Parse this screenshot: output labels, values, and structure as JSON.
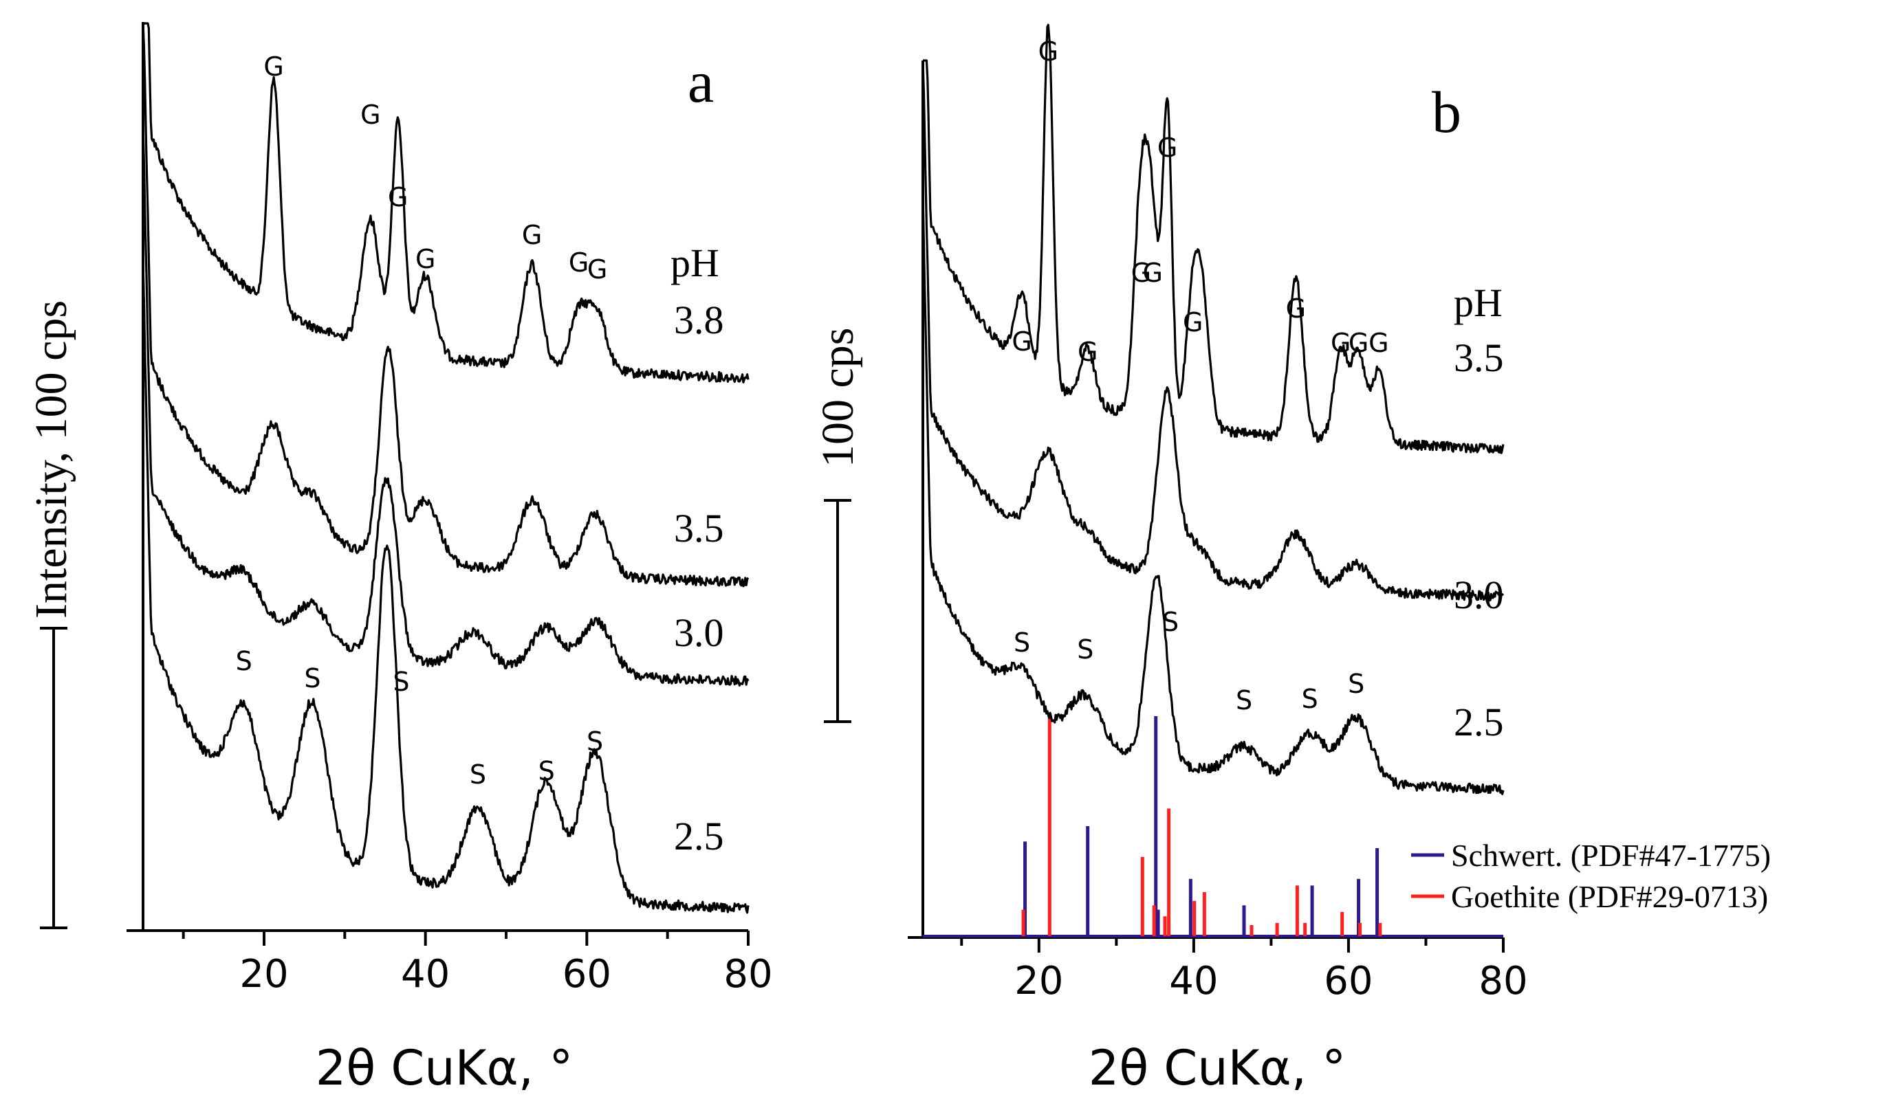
{
  "chart_data": [
    {
      "panel": "a",
      "type": "line",
      "xlabel": "2θ CuKα, °",
      "ylabel": "Intensity, 100 cps",
      "xlim": [
        5,
        80
      ],
      "xticks": [
        20,
        40,
        60,
        80
      ],
      "legend_title": "pH",
      "series": [
        {
          "name": "3.8",
          "peaks": [
            [
              21.2,
              1.0
            ],
            [
              33.2,
              0.55
            ],
            [
              36.6,
              1.0
            ],
            [
              40.0,
              0.35
            ],
            [
              53.2,
              0.45
            ],
            [
              59.0,
              0.25
            ],
            [
              61.3,
              0.25
            ]
          ]
        },
        {
          "name": "3.5",
          "peaks": [
            [
              21.2,
              0.45
            ],
            [
              26.0,
              0.2
            ],
            [
              35.4,
              1.0
            ],
            [
              40.0,
              0.3
            ],
            [
              53.3,
              0.35
            ],
            [
              61.0,
              0.3
            ]
          ]
        },
        {
          "name": "3.0",
          "peaks": [
            [
              17.5,
              0.2
            ],
            [
              26.0,
              0.2
            ],
            [
              35.2,
              1.0
            ],
            [
              46.0,
              0.2
            ],
            [
              55.0,
              0.25
            ],
            [
              61.2,
              0.3
            ]
          ]
        },
        {
          "name": "2.5",
          "peaks": [
            [
              17.5,
              0.3
            ],
            [
              26.0,
              0.45
            ],
            [
              35.2,
              1.0
            ],
            [
              46.5,
              0.25
            ],
            [
              55.0,
              0.35
            ],
            [
              61.0,
              0.45
            ]
          ]
        }
      ],
      "annotations": {
        "G": [
          21.2,
          33.2,
          36.6,
          40.0,
          53.2,
          59.0,
          61.3
        ],
        "S": [
          17.5,
          26.0,
          37.0,
          46.5,
          55.0,
          61.0
        ]
      }
    },
    {
      "panel": "b",
      "type": "line",
      "xlabel": "2θ CuKα, °",
      "ylabel": "100 cps",
      "xlim": [
        5,
        80
      ],
      "xticks": [
        20,
        40,
        60,
        80
      ],
      "legend_title": "pH",
      "series": [
        {
          "name": "3.5",
          "peaks": [
            [
              17.8,
              0.2
            ],
            [
              21.2,
              1.0
            ],
            [
              26.3,
              0.15
            ],
            [
              33.2,
              0.6
            ],
            [
              34.7,
              0.5
            ],
            [
              36.6,
              0.85
            ],
            [
              39.9,
              0.35
            ],
            [
              41.2,
              0.3
            ],
            [
              53.2,
              0.45
            ],
            [
              59.0,
              0.25
            ],
            [
              61.3,
              0.25
            ],
            [
              63.9,
              0.2
            ]
          ]
        },
        {
          "name": "3.0",
          "peaks": [
            [
              21.2,
              0.5
            ],
            [
              26.0,
              0.15
            ],
            [
              36.5,
              1.0
            ],
            [
              40.0,
              0.2
            ],
            [
              53.2,
              0.3
            ],
            [
              61.0,
              0.15
            ]
          ]
        },
        {
          "name": "2.5",
          "peaks": [
            [
              17.8,
              0.2
            ],
            [
              26.0,
              0.25
            ],
            [
              35.2,
              1.0
            ],
            [
              46.5,
              0.15
            ],
            [
              55.0,
              0.25
            ],
            [
              61.0,
              0.35
            ]
          ]
        }
      ],
      "annotations": {
        "G": [
          17.8,
          21.2,
          26.3,
          33.2,
          34.7,
          36.6,
          39.9,
          53.2,
          59.0,
          61.3,
          63.9
        ],
        "S": [
          17.8,
          26.0,
          37.0,
          46.5,
          55.0,
          61.0
        ]
      },
      "reference_patterns": [
        {
          "name": "Schwert. (PDF#47-1775)",
          "color": "#2f1a8c",
          "lines": [
            [
              18.2,
              0.43
            ],
            [
              26.3,
              0.5
            ],
            [
              35.1,
              1.0
            ],
            [
              35.4,
              0.12
            ],
            [
              39.6,
              0.26
            ],
            [
              46.5,
              0.14
            ],
            [
              55.3,
              0.23
            ],
            [
              61.3,
              0.26
            ],
            [
              63.7,
              0.4
            ]
          ]
        },
        {
          "name": "Goethite (PDF#29-0713)",
          "color": "#ff2020",
          "lines": [
            [
              17.8,
              0.12
            ],
            [
              21.2,
              1.0
            ],
            [
              33.2,
              0.36
            ],
            [
              34.7,
              0.14
            ],
            [
              36.1,
              0.09
            ],
            [
              36.6,
              0.58
            ],
            [
              39.9,
              0.16
            ],
            [
              41.2,
              0.2
            ],
            [
              47.3,
              0.05
            ],
            [
              50.6,
              0.06
            ],
            [
              53.2,
              0.23
            ],
            [
              54.2,
              0.06
            ],
            [
              59.0,
              0.11
            ],
            [
              61.3,
              0.06
            ],
            [
              63.9,
              0.06
            ]
          ]
        }
      ]
    }
  ]
}
